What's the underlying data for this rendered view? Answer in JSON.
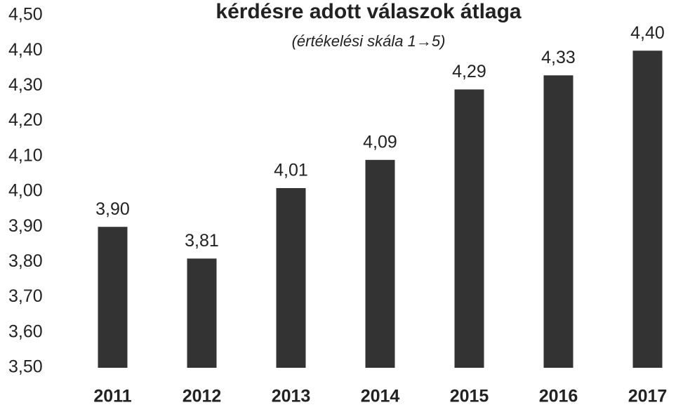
{
  "chart_data": {
    "type": "bar",
    "title": "kérdésre adott válaszok átlaga",
    "subtitle": "(értékelési skála 1→5)",
    "categories": [
      "2011",
      "2012",
      "2013",
      "2014",
      "2015",
      "2016",
      "2017"
    ],
    "values": [
      3.9,
      3.81,
      4.01,
      4.09,
      4.29,
      4.33,
      4.4
    ],
    "value_labels": [
      "3,90",
      "3,81",
      "4,01",
      "4,09",
      "4,29",
      "4,33",
      "4,40"
    ],
    "color": "#333333",
    "ylim": [
      3.5,
      4.5
    ],
    "yticks": [
      {
        "value": 3.5,
        "label": "3,50"
      },
      {
        "value": 3.6,
        "label": "3,60"
      },
      {
        "value": 3.7,
        "label": "3,70"
      },
      {
        "value": 3.8,
        "label": "3,80"
      },
      {
        "value": 3.9,
        "label": "3,90"
      },
      {
        "value": 4.0,
        "label": "4,00"
      },
      {
        "value": 4.1,
        "label": "4,10"
      },
      {
        "value": 4.2,
        "label": "4,20"
      },
      {
        "value": 4.3,
        "label": "4,30"
      },
      {
        "value": 4.4,
        "label": "4,40"
      },
      {
        "value": 4.5,
        "label": "4,50"
      }
    ],
    "grid": false
  }
}
